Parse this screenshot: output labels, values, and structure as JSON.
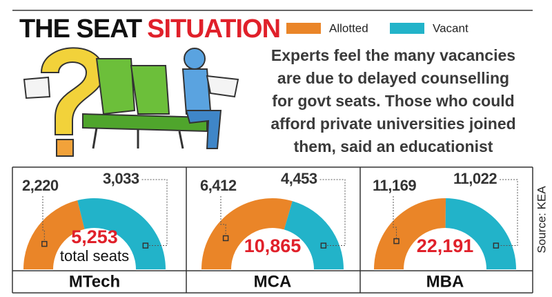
{
  "header": {
    "title_black": "THE SEAT",
    "title_red": "SITUATION"
  },
  "legend": {
    "items": [
      {
        "name": "Allotted",
        "color": "#ea8528"
      },
      {
        "name": "Vacant",
        "color": "#22b3c9"
      }
    ]
  },
  "caption": {
    "lines": [
      "Experts feel the many vacancies",
      "are due to delayed counselling",
      "for govt seats. Those who could",
      "afford private universities joined",
      "them, said an educationist"
    ]
  },
  "source": "Source: KEA",
  "chart_data": [
    {
      "type": "half-donut",
      "label": "MTech",
      "values": [
        2220,
        3033
      ],
      "value_labels": [
        "2,220",
        "3,033"
      ],
      "total": {
        "value": 5253,
        "label": "5,253"
      },
      "total_note": "total seats"
    },
    {
      "type": "half-donut",
      "label": "MCA",
      "values": [
        6412,
        4453
      ],
      "value_labels": [
        "6,412",
        "4,453"
      ],
      "total": {
        "value": 10865,
        "label": "10,865"
      }
    },
    {
      "type": "half-donut",
      "label": "MBA",
      "values": [
        11169,
        11022
      ],
      "value_labels": [
        "11,169",
        "11,022"
      ],
      "total": {
        "value": 22191,
        "label": "22,191"
      }
    }
  ]
}
